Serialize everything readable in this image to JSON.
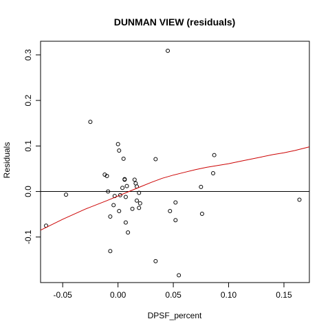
{
  "chart_data": {
    "type": "scatter",
    "title": "DUNMAN VIEW (residuals)",
    "xlabel": "DPSF_percent",
    "ylabel": "Residuals",
    "xlim": [
      -0.07,
      0.173
    ],
    "ylim": [
      -0.2,
      0.33
    ],
    "x_ticks": [
      -0.05,
      0.0,
      0.05,
      0.1,
      0.15
    ],
    "x_tick_labels": [
      "-0.05",
      "0.00",
      "0.05",
      "0.10",
      "0.15"
    ],
    "y_ticks": [
      -0.1,
      0.0,
      0.1,
      0.2,
      0.3
    ],
    "y_tick_labels": [
      "-0.1",
      "0.0",
      "0.1",
      "0.2",
      "0.3"
    ],
    "grid": false,
    "reference_line_y": 0,
    "colors": {
      "points": "#000000",
      "zero_line": "#000000",
      "smooth_line": "#cc0000"
    },
    "points": [
      {
        "x": -0.065,
        "y": -0.075
      },
      {
        "x": -0.047,
        "y": -0.007
      },
      {
        "x": -0.025,
        "y": 0.153
      },
      {
        "x": -0.012,
        "y": 0.037
      },
      {
        "x": -0.01,
        "y": 0.034
      },
      {
        "x": -0.009,
        "y": 0.0
      },
      {
        "x": -0.007,
        "y": -0.055
      },
      {
        "x": -0.007,
        "y": -0.131
      },
      {
        "x": -0.004,
        "y": -0.03
      },
      {
        "x": -0.003,
        "y": -0.01
      },
      {
        "x": 0.0,
        "y": 0.104
      },
      {
        "x": 0.001,
        "y": 0.09
      },
      {
        "x": 0.001,
        "y": -0.043
      },
      {
        "x": 0.002,
        "y": -0.008
      },
      {
        "x": 0.004,
        "y": 0.008
      },
      {
        "x": 0.005,
        "y": 0.072
      },
      {
        "x": 0.006,
        "y": 0.027
      },
      {
        "x": 0.006,
        "y": 0.026
      },
      {
        "x": 0.007,
        "y": -0.012
      },
      {
        "x": 0.007,
        "y": -0.068
      },
      {
        "x": 0.008,
        "y": 0.012
      },
      {
        "x": 0.009,
        "y": -0.09
      },
      {
        "x": 0.013,
        "y": -0.038
      },
      {
        "x": 0.015,
        "y": 0.026
      },
      {
        "x": 0.016,
        "y": 0.018
      },
      {
        "x": 0.017,
        "y": 0.011
      },
      {
        "x": 0.017,
        "y": -0.02
      },
      {
        "x": 0.019,
        "y": -0.003
      },
      {
        "x": 0.019,
        "y": -0.036
      },
      {
        "x": 0.02,
        "y": -0.026
      },
      {
        "x": 0.034,
        "y": 0.071
      },
      {
        "x": 0.034,
        "y": -0.153
      },
      {
        "x": 0.045,
        "y": 0.309
      },
      {
        "x": 0.047,
        "y": -0.043
      },
      {
        "x": 0.052,
        "y": -0.024
      },
      {
        "x": 0.052,
        "y": -0.063
      },
      {
        "x": 0.055,
        "y": -0.184
      },
      {
        "x": 0.075,
        "y": 0.01
      },
      {
        "x": 0.076,
        "y": -0.049
      },
      {
        "x": 0.086,
        "y": 0.04
      },
      {
        "x": 0.087,
        "y": 0.08
      },
      {
        "x": 0.164,
        "y": -0.018
      }
    ],
    "smooth_line": [
      {
        "x": -0.07,
        "y": -0.085
      },
      {
        "x": -0.05,
        "y": -0.061
      },
      {
        "x": -0.03,
        "y": -0.039
      },
      {
        "x": -0.01,
        "y": -0.02
      },
      {
        "x": 0.0,
        "y": -0.01
      },
      {
        "x": 0.01,
        "y": 0.0
      },
      {
        "x": 0.02,
        "y": 0.01
      },
      {
        "x": 0.03,
        "y": 0.02
      },
      {
        "x": 0.04,
        "y": 0.029
      },
      {
        "x": 0.05,
        "y": 0.036
      },
      {
        "x": 0.06,
        "y": 0.042
      },
      {
        "x": 0.07,
        "y": 0.048
      },
      {
        "x": 0.08,
        "y": 0.053
      },
      {
        "x": 0.09,
        "y": 0.057
      },
      {
        "x": 0.1,
        "y": 0.061
      },
      {
        "x": 0.11,
        "y": 0.066
      },
      {
        "x": 0.12,
        "y": 0.071
      },
      {
        "x": 0.13,
        "y": 0.076
      },
      {
        "x": 0.14,
        "y": 0.081
      },
      {
        "x": 0.15,
        "y": 0.085
      },
      {
        "x": 0.16,
        "y": 0.09
      },
      {
        "x": 0.173,
        "y": 0.098
      }
    ]
  }
}
